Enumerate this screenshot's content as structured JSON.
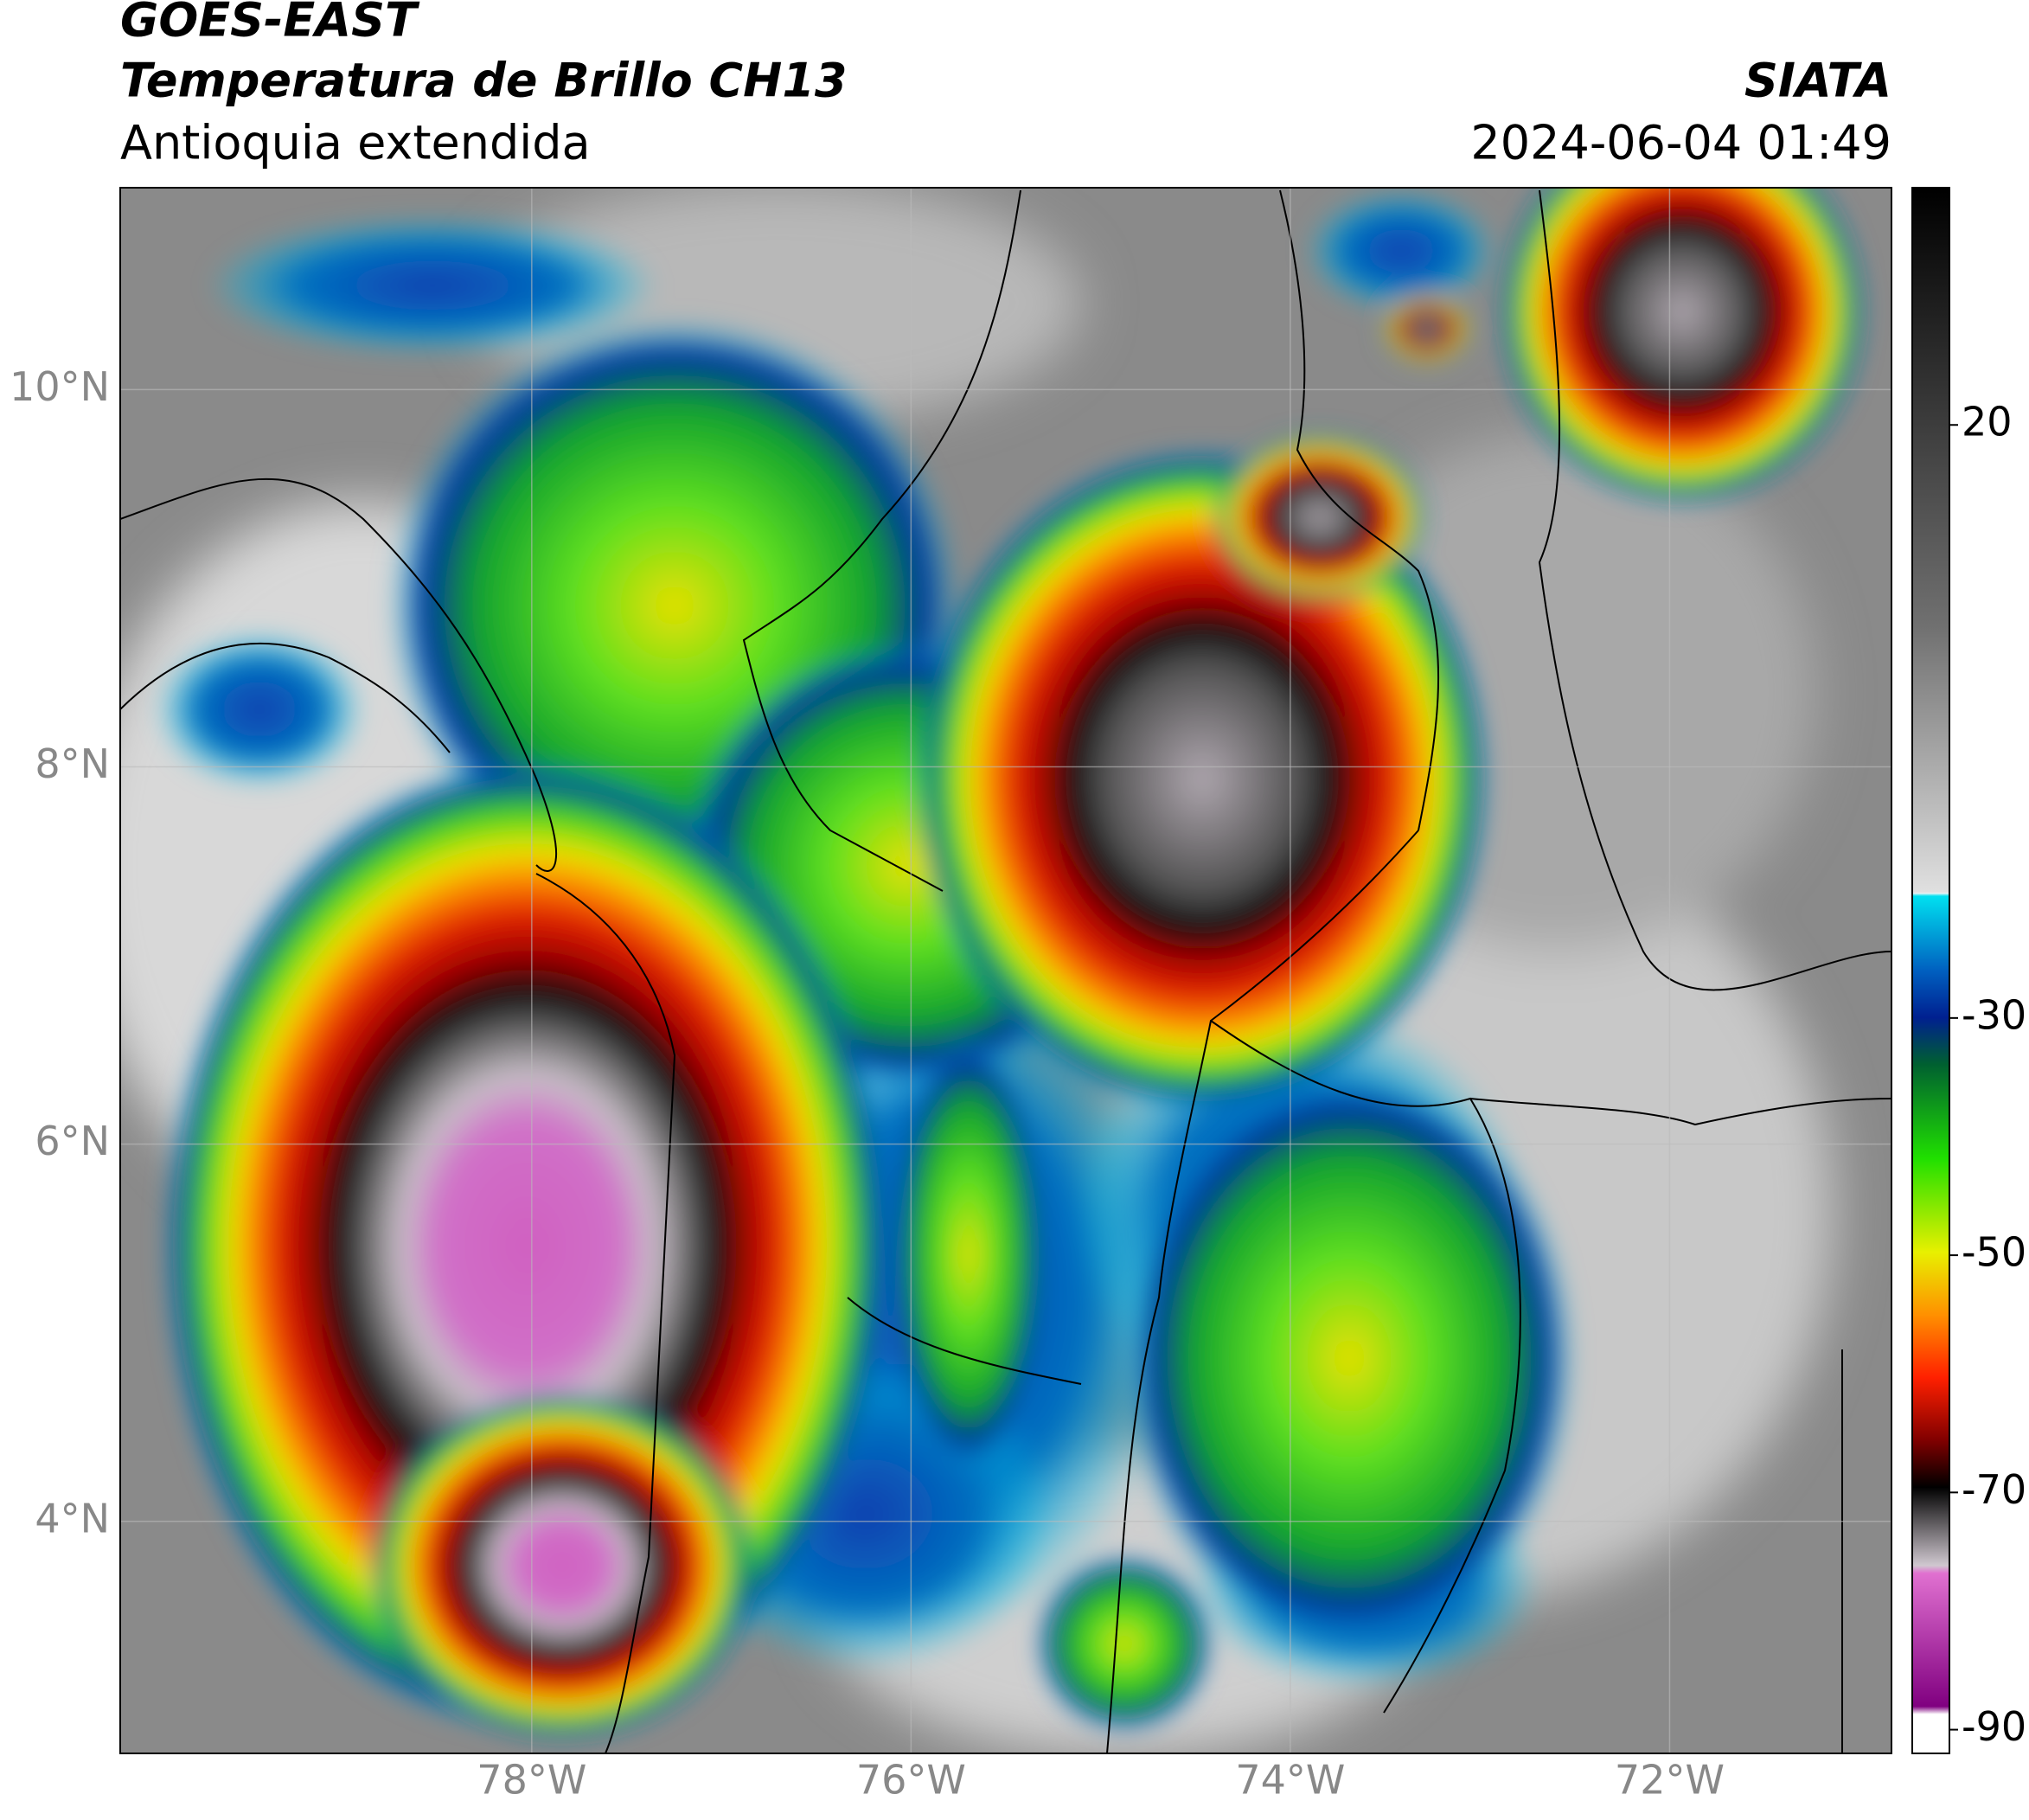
{
  "header": {
    "title": "GOES-EAST",
    "subtitle": "Temperatura de Brillo CH13",
    "region": "Antioquia extendida",
    "source": "SIATA",
    "timestamp": "2024-06-04 01:49"
  },
  "map": {
    "lonlim": [
      -80.17,
      -70.83
    ],
    "latlim": [
      2.77,
      11.07
    ],
    "grid": true,
    "lonticks": [
      {
        "value": -78,
        "label": "78°W"
      },
      {
        "value": -76,
        "label": "76°W"
      },
      {
        "value": -74,
        "label": "74°W"
      },
      {
        "value": -72,
        "label": "72°W"
      }
    ],
    "latticks": [
      {
        "value": 10,
        "label": "10°N"
      },
      {
        "value": 8,
        "label": "8°N"
      },
      {
        "value": 6,
        "label": "6°N"
      },
      {
        "value": 4,
        "label": "4°N"
      }
    ]
  },
  "colorbar": {
    "lim": [
      -92,
      40
    ],
    "ticks": [
      20,
      -30,
      -50,
      -70,
      -90
    ]
  }
}
